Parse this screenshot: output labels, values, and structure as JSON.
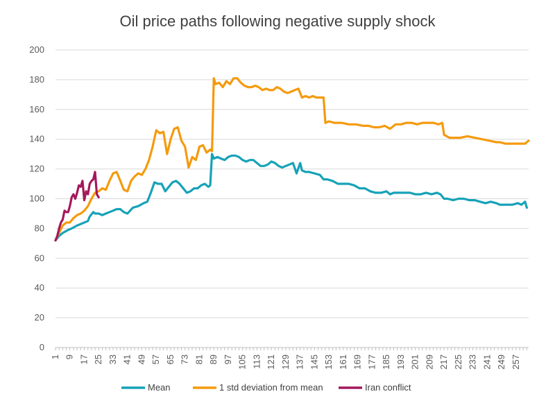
{
  "chart_data": {
    "type": "line",
    "title": "Oil price paths following negative supply shock",
    "xlabel": "",
    "ylabel": "",
    "ylim": [
      0,
      200
    ],
    "yticks": [
      0,
      20,
      40,
      60,
      80,
      100,
      120,
      140,
      160,
      180,
      200
    ],
    "xlim": [
      1,
      264
    ],
    "xticks": [
      1,
      9,
      17,
      25,
      33,
      41,
      49,
      57,
      65,
      73,
      81,
      89,
      97,
      105,
      113,
      121,
      129,
      137,
      145,
      153,
      161,
      169,
      177,
      185,
      193,
      201,
      209,
      217,
      225,
      233,
      241,
      249,
      257
    ],
    "grid": true,
    "legend_position": "bottom",
    "series": [
      {
        "name": "Mean",
        "color": "#16A2B8",
        "x": [
          1,
          3,
          5,
          8,
          10,
          13,
          15,
          17,
          19,
          20,
          22,
          23,
          25,
          27,
          29,
          31,
          33,
          35,
          37,
          39,
          41,
          44,
          47,
          50,
          52,
          54,
          56,
          58,
          60,
          62,
          64,
          66,
          68,
          70,
          72,
          74,
          76,
          78,
          80,
          82,
          84,
          86,
          87,
          88,
          89,
          91,
          93,
          95,
          97,
          99,
          101,
          103,
          105,
          107,
          109,
          111,
          113,
          115,
          117,
          119,
          121,
          123,
          125,
          127,
          129,
          131,
          133,
          135,
          137,
          138,
          140,
          142,
          145,
          148,
          150,
          152,
          155,
          158,
          161,
          164,
          167,
          170,
          173,
          176,
          179,
          182,
          185,
          187,
          189,
          192,
          195,
          198,
          201,
          204,
          207,
          210,
          213,
          215,
          217,
          219,
          222,
          225,
          228,
          231,
          234,
          237,
          240,
          243,
          246,
          248,
          250,
          252,
          255,
          258,
          260,
          262,
          263
        ],
        "values": [
          72,
          75,
          77,
          79,
          80,
          82,
          83,
          84,
          85,
          88,
          91,
          90,
          90,
          89,
          90,
          91,
          92,
          93,
          93,
          91,
          90,
          94,
          95,
          97,
          98,
          104,
          111,
          110,
          110,
          105,
          108,
          111,
          112,
          110,
          107,
          104,
          105,
          107,
          107,
          109,
          110,
          108,
          109,
          130,
          127,
          128,
          127,
          126,
          128,
          129,
          129,
          128,
          126,
          125,
          126,
          126,
          124,
          122,
          122,
          123,
          125,
          124,
          122,
          121,
          122,
          123,
          124,
          117,
          124,
          119,
          118,
          118,
          117,
          116,
          113,
          113,
          112,
          110,
          110,
          110,
          109,
          107,
          107,
          105,
          104,
          104,
          105,
          103,
          104,
          104,
          104,
          104,
          103,
          103,
          104,
          103,
          104,
          103,
          100,
          100,
          99,
          100,
          100,
          99,
          99,
          98,
          97,
          98,
          97,
          96,
          96,
          96,
          96,
          97,
          96,
          98,
          94
        ]
      },
      {
        "name": "1 std deviation from mean",
        "color": "#F59A0D",
        "x": [
          1,
          3,
          5,
          7,
          9,
          11,
          13,
          15,
          17,
          19,
          21,
          23,
          25,
          27,
          29,
          31,
          33,
          35,
          37,
          39,
          41,
          43,
          45,
          47,
          49,
          51,
          53,
          55,
          57,
          59,
          61,
          63,
          65,
          67,
          69,
          71,
          73,
          75,
          77,
          79,
          81,
          83,
          85,
          87,
          88,
          89,
          90,
          92,
          94,
          96,
          98,
          100,
          102,
          104,
          106,
          108,
          110,
          112,
          114,
          116,
          118,
          120,
          122,
          124,
          126,
          128,
          130,
          132,
          134,
          136,
          138,
          140,
          142,
          144,
          146,
          148,
          150,
          151,
          153,
          156,
          160,
          164,
          168,
          172,
          175,
          178,
          181,
          184,
          187,
          190,
          193,
          196,
          199,
          202,
          205,
          208,
          211,
          214,
          216,
          217,
          220,
          223,
          226,
          230,
          234,
          238,
          242,
          246,
          248,
          251,
          255,
          258,
          262,
          264
        ],
        "values": [
          72,
          77,
          82,
          84,
          84,
          87,
          89,
          90,
          92,
          95,
          100,
          104,
          105,
          107,
          106,
          112,
          117,
          118,
          112,
          106,
          105,
          112,
          115,
          117,
          116,
          120,
          126,
          135,
          146,
          144,
          145,
          130,
          140,
          147,
          148,
          139,
          135,
          121,
          128,
          126,
          135,
          136,
          131,
          133,
          132,
          181,
          177,
          178,
          175,
          179,
          177,
          181,
          181,
          178,
          176,
          175,
          175,
          176,
          175,
          173,
          174,
          173,
          173,
          175,
          174,
          172,
          171,
          172,
          173,
          174,
          168,
          169,
          168,
          169,
          168,
          168,
          168,
          151,
          152,
          151,
          151,
          150,
          150,
          149,
          149,
          148,
          148,
          149,
          147,
          150,
          150,
          151,
          151,
          150,
          151,
          151,
          151,
          150,
          151,
          143,
          141,
          141,
          141,
          142,
          141,
          140,
          139,
          138,
          138,
          137,
          137,
          137,
          137,
          139
        ]
      },
      {
        "name": "Iran conflict",
        "color": "#A3195B",
        "x": [
          1,
          2,
          3,
          4,
          5,
          6,
          7,
          8,
          9,
          10,
          11,
          12,
          13,
          14,
          15,
          16,
          17,
          18,
          19,
          20,
          21,
          22,
          23,
          24,
          25
        ],
        "values": [
          72,
          75,
          80,
          84,
          86,
          92,
          91,
          91,
          95,
          101,
          103,
          100,
          104,
          109,
          108,
          112,
          99,
          105,
          103,
          110,
          112,
          113,
          118,
          103,
          101
        ]
      }
    ]
  }
}
